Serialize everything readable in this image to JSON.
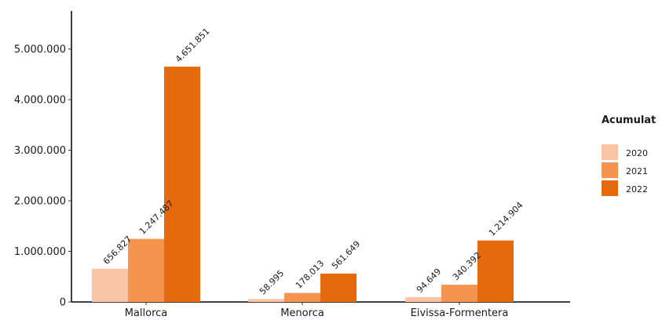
{
  "chart_data": {
    "type": "bar",
    "title": "",
    "xlabel": "",
    "ylabel": "",
    "ylim": [
      0,
      5400000
    ],
    "y_ticks": [
      0,
      1000000,
      2000000,
      3000000,
      4000000,
      5000000
    ],
    "y_tick_labels": [
      "0",
      "1.000.000",
      "2.000.000",
      "3.000.000",
      "4.000.000",
      "5.000.000"
    ],
    "grid": false,
    "legend_position": "right",
    "legend_title": "Acumulat",
    "categories": [
      "Mallorca",
      "Menorca",
      "Eivissa-Formentera"
    ],
    "series": [
      {
        "name": "2020",
        "color": "#f9c3a6",
        "values": [
          656827,
          58995,
          94649
        ],
        "labels": [
          "656.827",
          "58.995",
          "94.649"
        ]
      },
      {
        "name": "2021",
        "color": "#f5944e",
        "values": [
          1247487,
          178013,
          340392
        ],
        "labels": [
          "1.247.487",
          "178.013",
          "340.392"
        ]
      },
      {
        "name": "2022",
        "color": "#e46a0d",
        "values": [
          4651851,
          561649,
          1214904
        ],
        "labels": [
          "4.651.851",
          "561.649",
          "1.214.904"
        ]
      }
    ]
  }
}
